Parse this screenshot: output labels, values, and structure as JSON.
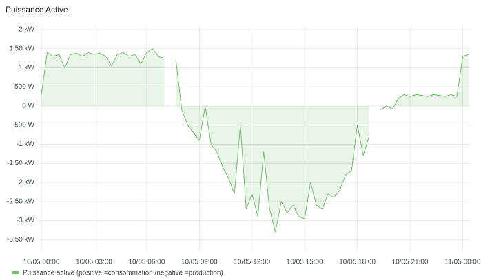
{
  "chart_data": {
    "type": "line",
    "title": "Puissance Active",
    "x": [
      "10/05 00:00",
      "10/05 00:20",
      "10/05 00:40",
      "10/05 01:00",
      "10/05 01:20",
      "10/05 01:40",
      "10/05 02:00",
      "10/05 02:20",
      "10/05 02:40",
      "10/05 03:00",
      "10/05 03:20",
      "10/05 03:40",
      "10/05 04:00",
      "10/05 04:20",
      "10/05 04:40",
      "10/05 05:00",
      "10/05 05:20",
      "10/05 05:40",
      "10/05 06:00",
      "10/05 06:20",
      "10/05 06:40",
      "10/05 07:00",
      "10/05 07:20",
      "10/05 07:40",
      "10/05 08:00",
      "10/05 08:20",
      "10/05 08:40",
      "10/05 09:00",
      "10/05 09:20",
      "10/05 09:40",
      "10/05 10:00",
      "10/05 10:20",
      "10/05 10:40",
      "10/05 11:00",
      "10/05 11:20",
      "10/05 11:40",
      "10/05 12:00",
      "10/05 12:20",
      "10/05 12:40",
      "10/05 13:00",
      "10/05 13:20",
      "10/05 13:40",
      "10/05 14:00",
      "10/05 14:20",
      "10/05 14:40",
      "10/05 15:00",
      "10/05 15:20",
      "10/05 15:40",
      "10/05 16:00",
      "10/05 16:20",
      "10/05 16:40",
      "10/05 17:00",
      "10/05 17:20",
      "10/05 17:40",
      "10/05 18:00",
      "10/05 18:20",
      "10/05 18:40",
      "10/05 19:00",
      "10/05 19:20",
      "10/05 19:40",
      "10/05 20:00",
      "10/05 20:20",
      "10/05 20:40",
      "10/05 21:00",
      "10/05 21:20",
      "10/05 21:40",
      "10/05 22:00",
      "10/05 22:20",
      "10/05 22:40",
      "10/05 23:00",
      "10/05 23:20",
      "10/05 23:40",
      "11/05 00:00",
      "11/05 00:20"
    ],
    "series": [
      {
        "name": "Puissance active (positive =consommation /negative =production)",
        "color": "#73bf69",
        "values": [
          300,
          1400,
          1300,
          1350,
          1000,
          1350,
          1380,
          1300,
          1400,
          1350,
          1380,
          1300,
          1050,
          1350,
          1400,
          1300,
          1350,
          1100,
          1400,
          1500,
          1300,
          1250,
          null,
          1200,
          -100,
          -500,
          -700,
          -900,
          -20,
          -1000,
          -1200,
          -1600,
          -1900,
          -2300,
          -500,
          -2700,
          -2300,
          -2900,
          -1200,
          -2700,
          -3300,
          -2500,
          -2800,
          -2600,
          -2900,
          -2950,
          -2000,
          -2600,
          -2700,
          -2300,
          -2400,
          -2200,
          -1800,
          -1700,
          -500,
          -1300,
          -800,
          null,
          -100,
          0,
          -80,
          200,
          300,
          250,
          300,
          280,
          250,
          300,
          280,
          250,
          300,
          250,
          1300,
          1350
        ]
      }
    ],
    "xlim": [
      "10/05 00:00",
      "11/05 00:20"
    ],
    "xticks": [
      "10/05 00:00",
      "10/05 03:00",
      "10/05 06:00",
      "10/05 09:00",
      "10/05 12:00",
      "10/05 15:00",
      "10/05 18:00",
      "10/05 21:00",
      "11/05 00:00"
    ],
    "ylim": [
      -3800,
      2000
    ],
    "yticks": [
      {
        "value": 2000,
        "label": "2 kW"
      },
      {
        "value": 1500,
        "label": "1.50 kW"
      },
      {
        "value": 1000,
        "label": "1 kW"
      },
      {
        "value": 500,
        "label": "500 W"
      },
      {
        "value": 0,
        "label": "0 W"
      },
      {
        "value": -500,
        "label": "-500 W"
      },
      {
        "value": -1000,
        "label": "-1 kW"
      },
      {
        "value": -1500,
        "label": "-1.50 kW"
      },
      {
        "value": -2000,
        "label": "-2 kW"
      },
      {
        "value": -2500,
        "label": "-2.50 kW"
      },
      {
        "value": -3000,
        "label": "-3 kW"
      },
      {
        "value": -3500,
        "label": "-3.50 kW"
      }
    ],
    "grid": true
  }
}
